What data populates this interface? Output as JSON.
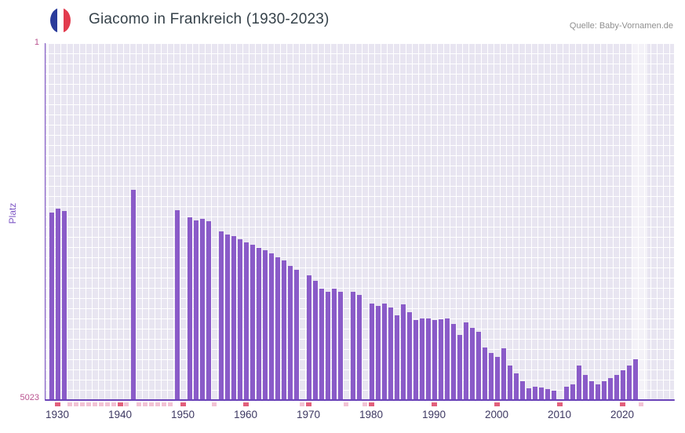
{
  "header": {
    "title": "Giacomo in Frankreich (1930-2023)",
    "source": "Quelle: Baby-Vornamen.de",
    "flag_colors": {
      "blue": "#2a3b9b",
      "white": "#ffffff",
      "red": "#e23b4e"
    }
  },
  "chart_data": {
    "type": "bar",
    "title": "Giacomo in Frankreich (1930-2023)",
    "xlabel": "",
    "ylabel": "Platz",
    "y_axis": {
      "top_label": "1",
      "bottom_label": "5023",
      "min": 1,
      "max": 5023,
      "inverted": true
    },
    "x_tick_years": [
      1930,
      1940,
      1950,
      1960,
      1970,
      1980,
      1990,
      2000,
      2010,
      2020
    ],
    "years": [
      1929,
      1930,
      1931,
      1932,
      1933,
      1934,
      1935,
      1936,
      1937,
      1938,
      1939,
      1940,
      1941,
      1942,
      1943,
      1944,
      1945,
      1946,
      1947,
      1948,
      1949,
      1950,
      1951,
      1952,
      1953,
      1954,
      1955,
      1956,
      1957,
      1958,
      1959,
      1960,
      1961,
      1962,
      1963,
      1964,
      1965,
      1966,
      1967,
      1968,
      1969,
      1970,
      1971,
      1972,
      1973,
      1974,
      1975,
      1976,
      1977,
      1978,
      1979,
      1980,
      1981,
      1982,
      1983,
      1984,
      1985,
      1986,
      1987,
      1988,
      1989,
      1990,
      1991,
      1992,
      1993,
      1994,
      1995,
      1996,
      1997,
      1998,
      1999,
      2000,
      2001,
      2002,
      2003,
      2004,
      2005,
      2006,
      2007,
      2008,
      2009,
      2010,
      2011,
      2012,
      2013,
      2014,
      2015,
      2016,
      2017,
      2018,
      2019,
      2020,
      2021,
      2022,
      2023
    ],
    "ranks": [
      2380,
      2330,
      2360,
      null,
      null,
      null,
      null,
      null,
      null,
      null,
      null,
      null,
      null,
      2060,
      null,
      null,
      null,
      null,
      null,
      null,
      2350,
      null,
      2450,
      2490,
      2470,
      2510,
      null,
      2650,
      2690,
      2720,
      2760,
      2800,
      2840,
      2880,
      2920,
      2960,
      3010,
      3060,
      3140,
      3190,
      null,
      3270,
      3340,
      3460,
      3500,
      3460,
      3500,
      null,
      3500,
      3540,
      null,
      3660,
      3700,
      3660,
      3720,
      3830,
      3680,
      3790,
      3900,
      3870,
      3870,
      3900,
      3890,
      3870,
      3950,
      4110,
      3930,
      4010,
      4060,
      4280,
      4360,
      4420,
      4290,
      4540,
      4650,
      4760,
      4860,
      4830,
      4850,
      4870,
      4890,
      null,
      4830,
      4800,
      4540,
      4670,
      4760,
      4800,
      4760,
      4710,
      4670,
      4600,
      4540,
      4450,
      null
    ],
    "highlight_years": [
      2022,
      2023
    ],
    "colors": {
      "bar": "#8a5bc8",
      "plot_bg": "#e8e5f1",
      "grid": "#ffffff",
      "axis": "#6a43b8",
      "missing_marker": "#f2c3d4",
      "decade_tick": "#e2607b",
      "y_tick": "#b9538f",
      "x_tick": "#3d3862",
      "y_label": "#7e57c5"
    }
  }
}
